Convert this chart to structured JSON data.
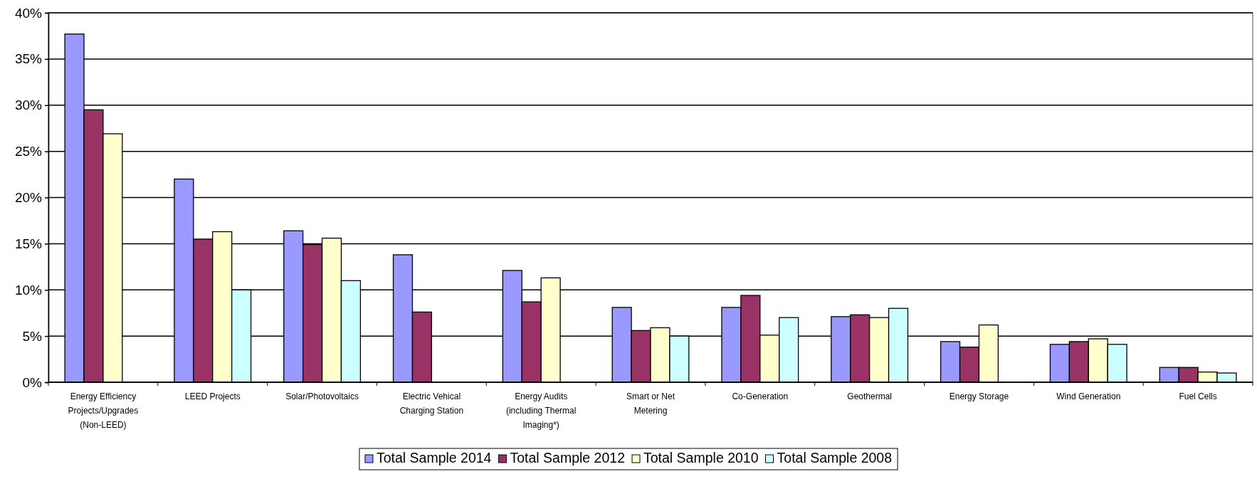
{
  "chart_data": {
    "type": "bar",
    "categories": [
      "Energy Efficiency Projects/Upgrades (Non-LEED)",
      "LEED Projects",
      "Solar/Photovoltaics",
      "Electric Vehical Charging Station",
      "Energy Audits (including Thermal Imaging*)",
      "Smart or Net Metering",
      "Co-Generation",
      "Geothermal",
      "Energy Storage",
      "Wind Generation",
      "Fuel Cells"
    ],
    "series": [
      {
        "name": "Total Sample 2014",
        "color": "#9999ff",
        "values": [
          37.7,
          22,
          16.4,
          13.8,
          12.1,
          8.1,
          8.1,
          7.1,
          4.4,
          4.1,
          1.6
        ]
      },
      {
        "name": "Total Sample 2012",
        "color": "#993366",
        "values": [
          29.5,
          15.5,
          14.9,
          7.6,
          8.7,
          5.6,
          9.4,
          7.3,
          3.8,
          4.4,
          1.6
        ]
      },
      {
        "name": "Total Sample 2010",
        "color": "#ffffcc",
        "values": [
          26.9,
          16.3,
          15.6,
          null,
          11.3,
          5.9,
          5.1,
          7,
          6.2,
          4.7,
          1.1
        ]
      },
      {
        "name": "Total Sample 2008",
        "color": "#ccffff",
        "values": [
          null,
          10,
          11,
          null,
          null,
          5,
          7,
          8,
          null,
          4.1,
          1
        ]
      }
    ],
    "ylim": [
      0,
      40
    ],
    "yticks": [
      {
        "value": 0,
        "label": "0%"
      },
      {
        "value": 5,
        "label": "5%"
      },
      {
        "value": 10,
        "label": "10%"
      },
      {
        "value": 15,
        "label": "15%"
      },
      {
        "value": 20,
        "label": "20%"
      },
      {
        "value": 25,
        "label": "25%"
      },
      {
        "value": 30,
        "label": "30%"
      },
      {
        "value": 35,
        "label": "35%"
      },
      {
        "value": 40,
        "label": "40%"
      }
    ],
    "grid": "y",
    "legend": "bottom"
  }
}
